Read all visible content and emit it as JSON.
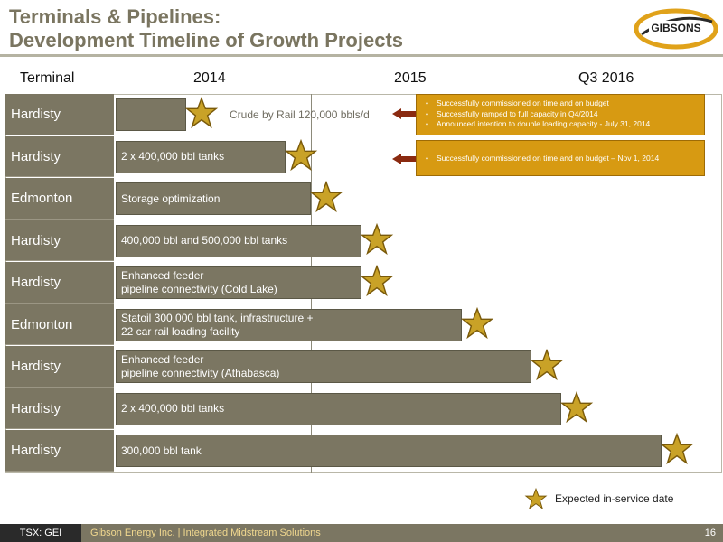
{
  "header": {
    "title_line1": "Terminals & Pipelines:",
    "title_line2": "Development Timeline of Growth Projects",
    "logo_text": "GIBSONS"
  },
  "chart_data": {
    "type": "bar",
    "orientation": "horizontal-timeline",
    "row_header": "Terminal",
    "column_headers": [
      "2014",
      "2015",
      "Q3 2016"
    ],
    "rows": [
      {
        "terminal": "Hardisty",
        "project": "",
        "expected_in_service": "early 2014"
      },
      {
        "terminal": "Hardisty",
        "project": "2 x 400,000 bbl tanks",
        "expected_in_service": "late 2014"
      },
      {
        "terminal": "Edmonton",
        "project": "Storage optimization",
        "expected_in_service": "end 2014"
      },
      {
        "terminal": "Hardisty",
        "project": "400,000 bbl and 500,000 bbl tanks",
        "expected_in_service": "early 2015"
      },
      {
        "terminal": "Hardisty",
        "project": "Enhanced feeder\npipeline connectivity (Cold Lake)",
        "expected_in_service": "early 2015"
      },
      {
        "terminal": "Edmonton",
        "project": "Statoil 300,000 bbl tank, infrastructure +\n22 car rail loading facility",
        "expected_in_service": "late 2015"
      },
      {
        "terminal": "Hardisty",
        "project": "Enhanced feeder\npipeline connectivity (Athabasca)",
        "expected_in_service": "early 2016"
      },
      {
        "terminal": "Hardisty",
        "project": "2 x 400,000 bbl tanks",
        "expected_in_service": "Q1 2016"
      },
      {
        "terminal": "Hardisty",
        "project": "300,000 bbl tank",
        "expected_in_service": "Q3 2016"
      }
    ],
    "annotation_outside": "Crude by Rail 120,000 bbls/d",
    "callouts": [
      {
        "row": 0,
        "bullets": [
          "Successfully commissioned on time and on budget",
          "Successfully ramped to full capacity in  Q4/2014",
          "Announced intention to double loading capacity  - July 31, 2014"
        ]
      },
      {
        "row": 1,
        "bullets": [
          "Successfully commissioned on time and on budget – Nov 1, 2014"
        ]
      }
    ],
    "legend": "Expected in-service date",
    "colors": {
      "bar": "#7b7662",
      "star": "#c9a227",
      "callout": "#d79a12",
      "title": "#7a7560"
    }
  },
  "footer": {
    "ticker": "TSX: GEI",
    "company": "Gibson Energy Inc.  |  Integrated Midstream Solutions",
    "page": "16"
  }
}
